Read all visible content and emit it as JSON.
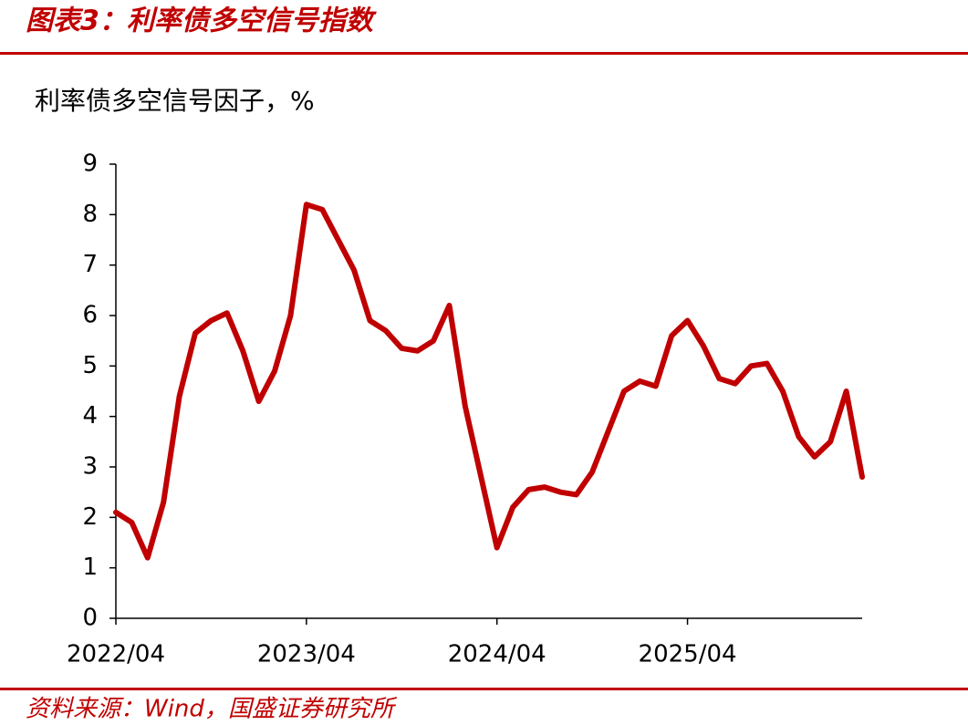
{
  "header": {
    "title": "图表3：利率债多空信号指数"
  },
  "chart_data": {
    "type": "line",
    "title": "利率债多空信号因子，%",
    "x": [
      "2022/04",
      "2022/05",
      "2022/06",
      "2022/07",
      "2022/08",
      "2022/09",
      "2022/10",
      "2022/11",
      "2022/12",
      "2023/01",
      "2023/02",
      "2023/03",
      "2023/04",
      "2023/05",
      "2023/06",
      "2023/07",
      "2023/08",
      "2023/09",
      "2023/10",
      "2023/11",
      "2023/12",
      "2024/01",
      "2024/02",
      "2024/03",
      "2024/04",
      "2024/05",
      "2024/06",
      "2024/07",
      "2024/08",
      "2024/09",
      "2024/10",
      "2024/11",
      "2024/12",
      "2025/01",
      "2025/02",
      "2025/03",
      "2025/04",
      "2025/05",
      "2025/06",
      "2025/07",
      "2025/08",
      "2025/09",
      "2025/10",
      "2025/11",
      "2025/12",
      "2026/01",
      "2026/02",
      "2026/03"
    ],
    "series": [
      {
        "name": "利率债多空信号因子",
        "color": "#c00000",
        "values": [
          2.1,
          1.9,
          1.2,
          2.3,
          4.4,
          5.65,
          5.9,
          6.05,
          5.3,
          4.3,
          4.9,
          6.0,
          8.2,
          8.1,
          7.5,
          6.9,
          5.9,
          5.7,
          5.35,
          5.3,
          5.5,
          6.2,
          4.2,
          2.8,
          1.4,
          2.2,
          2.55,
          2.6,
          2.5,
          2.45,
          2.9,
          3.7,
          4.5,
          4.7,
          4.6,
          5.6,
          5.9,
          5.4,
          4.75,
          4.65,
          5.0,
          5.05,
          4.5,
          3.6,
          3.2,
          3.5,
          4.5,
          2.8
        ]
      }
    ],
    "xticks": [
      "2022/04",
      "2023/04",
      "2024/04",
      "2025/04"
    ],
    "ylim": [
      0,
      9
    ],
    "yticks": [
      0,
      1,
      2,
      3,
      4,
      5,
      6,
      7,
      8,
      9
    ]
  },
  "footer": {
    "source": "资料来源：Wind，国盛证券研究所"
  }
}
